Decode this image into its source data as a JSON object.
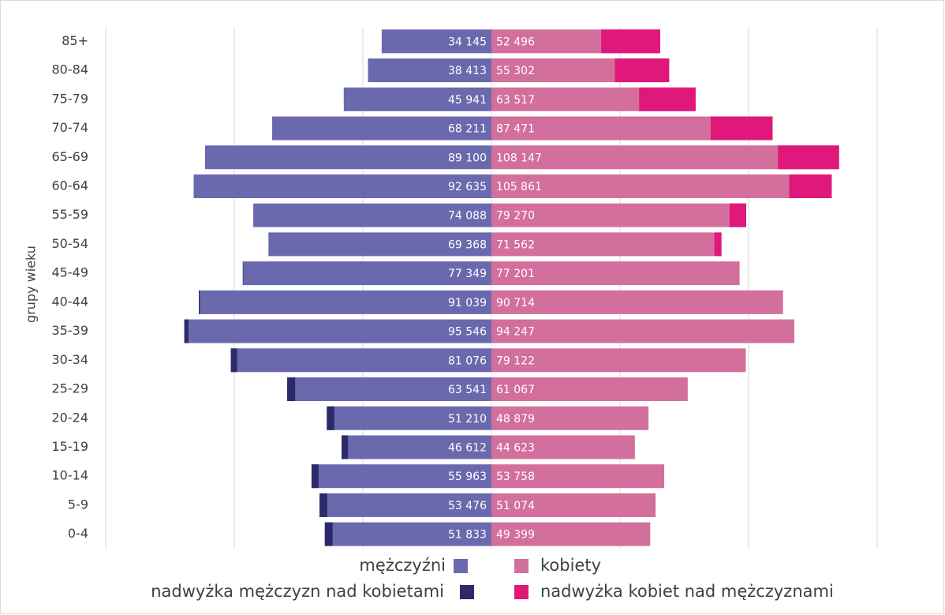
{
  "chart_data": {
    "type": "population-pyramid",
    "y_label": "grupy wieku",
    "categories": [
      "85+",
      "80-84",
      "75-79",
      "70-74",
      "65-69",
      "60-64",
      "55-59",
      "50-54",
      "45-49",
      "40-44",
      "35-39",
      "30-34",
      "25-29",
      "20-24",
      "15-19",
      "10-14",
      "5-9",
      "0-4"
    ],
    "series": [
      {
        "name": "mężczyźni",
        "color": "#6b69ae",
        "side": "left",
        "values": [
          34145,
          38413,
          45941,
          68211,
          89100,
          92635,
          74088,
          69368,
          77349,
          91039,
          95546,
          81076,
          63541,
          51210,
          46612,
          55963,
          53476,
          51833
        ],
        "value_labels": [
          "34 145",
          "38 413",
          "45 941",
          "68 211",
          "89 100",
          "92 635",
          "74 088",
          "69 368",
          "77 349",
          "91 039",
          "95 546",
          "81 076",
          "63 541",
          "51 210",
          "46 612",
          "55 963",
          "53 476",
          "51 833"
        ]
      },
      {
        "name": "kobiety",
        "color": "#d36f9c",
        "side": "right",
        "values": [
          52496,
          55302,
          63517,
          87471,
          108147,
          105861,
          79270,
          71562,
          77201,
          90714,
          94247,
          79122,
          61067,
          48879,
          44623,
          53758,
          51074,
          49399
        ],
        "value_labels": [
          "52 496",
          "55 302",
          "63 517",
          "87 471",
          "108 147",
          "105 861",
          "79 270",
          "71 562",
          "77 201",
          "90 714",
          "94 247",
          "79 122",
          "61 067",
          "48 879",
          "44 623",
          "53 758",
          "51 074",
          "49 399"
        ]
      },
      {
        "name": "nadwyżka mężczyzn nad kobietami",
        "color": "#2d2a6a",
        "side": "left",
        "excess_of": 0,
        "values": [
          null,
          null,
          null,
          null,
          null,
          null,
          null,
          null,
          148,
          325,
          1299,
          1954,
          2474,
          2331,
          1989,
          2205,
          2402,
          2434
        ]
      },
      {
        "name": "nadwyżka kobiet nad mężczyznami",
        "color": "#e0187b",
        "side": "right",
        "excess_of": 1,
        "values": [
          18351,
          16889,
          17576,
          19260,
          19047,
          13226,
          5182,
          2194,
          null,
          null,
          null,
          null,
          null,
          null,
          null,
          null,
          null,
          null
        ]
      }
    ],
    "xlim": [
      0,
      120000
    ],
    "xticks": [
      0,
      40000,
      80000,
      120000
    ],
    "grid": true
  }
}
